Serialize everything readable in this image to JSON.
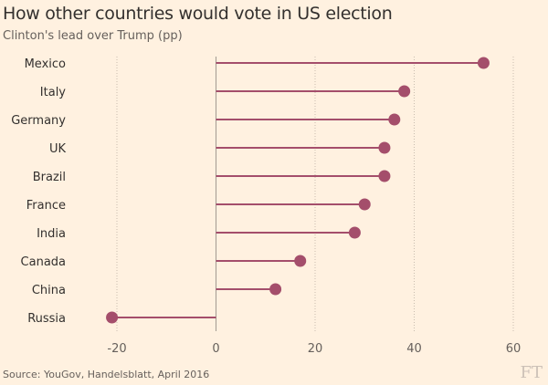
{
  "title": "How other countries would vote in US election",
  "subtitle": "Clinton's lead over Trump (pp)",
  "source": "Source: YouGov, Handelsblatt, April 2016",
  "logo": "FT",
  "colors": {
    "background": "#fff1e0",
    "series": "#a44e6b"
  },
  "chart_data": {
    "type": "lollipop",
    "categories": [
      "Mexico",
      "Italy",
      "Germany",
      "UK",
      "Brazil",
      "France",
      "India",
      "Canada",
      "China",
      "Russia"
    ],
    "values": [
      54,
      38,
      36,
      34,
      34,
      30,
      28,
      17,
      12,
      -21
    ],
    "xlim": [
      -20,
      60
    ],
    "xticks": [
      -20,
      0,
      20,
      40,
      60
    ],
    "grid": true,
    "orientation": "horizontal"
  }
}
